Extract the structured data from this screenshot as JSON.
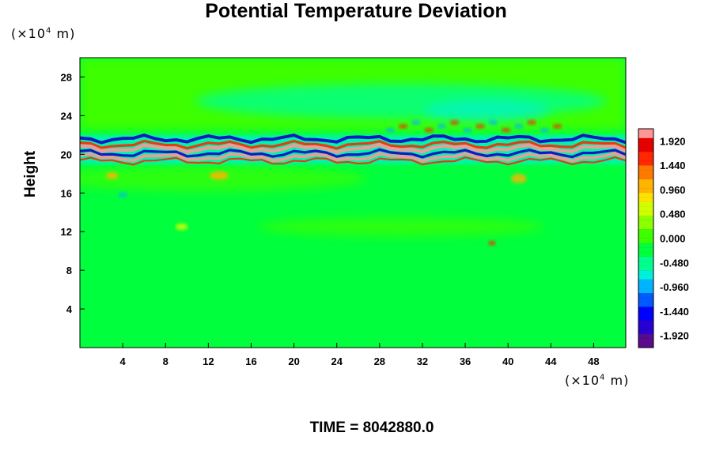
{
  "chart_data": {
    "type": "heatmap",
    "title": "Potential Temperature Deviation",
    "ylabel": "Height",
    "xlabel": "",
    "x_unit": {
      "prefix": "(×10",
      "exp": "4",
      "suffix": " m)"
    },
    "y_unit": {
      "prefix": "(×10",
      "exp": "4",
      "suffix": " m)"
    },
    "xlim": [
      0,
      51
    ],
    "ylim": [
      0,
      30
    ],
    "x_ticks": [
      "4",
      "8",
      "12",
      "16",
      "20",
      "24",
      "28",
      "32",
      "36",
      "40",
      "44",
      "48"
    ],
    "y_ticks": [
      "4",
      "8",
      "12",
      "16",
      "20",
      "24",
      "28"
    ],
    "colorbar": {
      "range": [
        -2.16,
        2.16
      ],
      "levels": [
        -1.92,
        -1.44,
        -0.96,
        -0.48,
        0.0,
        0.48,
        0.96,
        1.44,
        1.92
      ],
      "labels": [
        "-1.920",
        "-1.440",
        "-0.960",
        "-0.480",
        "0.000",
        "0.480",
        "0.960",
        "1.440",
        "1.920"
      ],
      "colors": [
        "#5a0a8c",
        "#2800d2",
        "#0000ff",
        "#005aff",
        "#00b4ff",
        "#00f0dc",
        "#00ff8c",
        "#00ff3c",
        "#3cff00",
        "#8cff00",
        "#d2ff00",
        "#ffe100",
        "#ffb400",
        "#ff7800",
        "#ff2800",
        "#e60000",
        "#ff9696"
      ]
    },
    "field_description_colors": {
      "background": "#00ff3c",
      "upper": "#3cff00",
      "band_hot": "#ff9696",
      "band_cold": "#1400c8",
      "band_red": "#ff2800",
      "band_cyan": "#00f0dc"
    }
  },
  "footer": {
    "label": "TIME =",
    "value": "8042880.0"
  }
}
